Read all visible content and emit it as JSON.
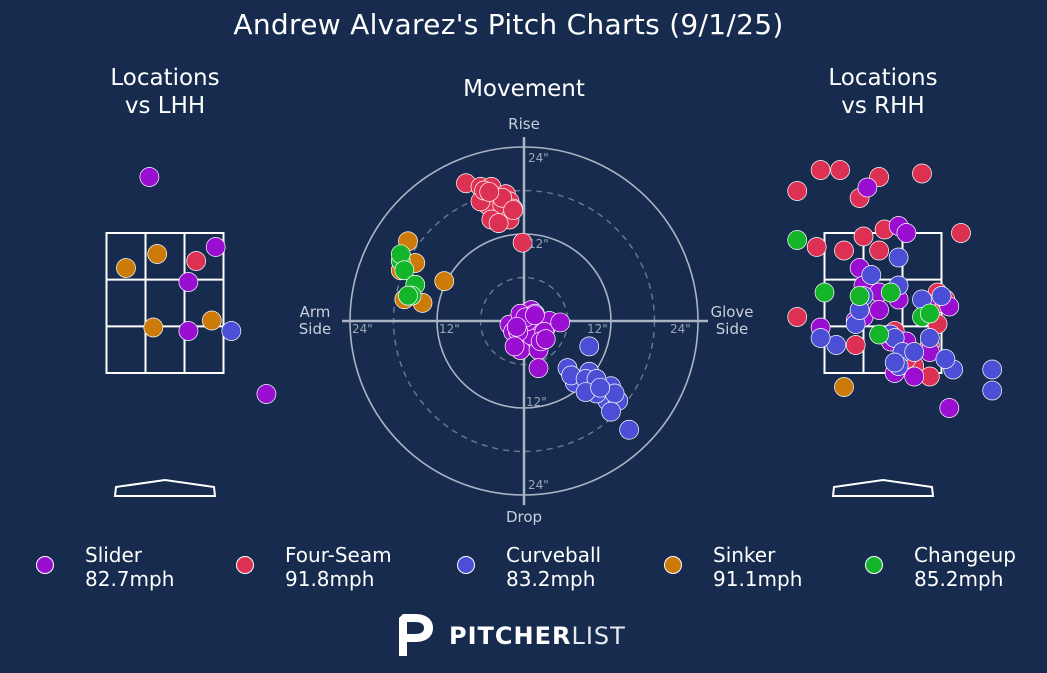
{
  "title": "Andrew Alvarez's Pitch Charts (9/1/25)",
  "panels": {
    "lhh_title_line1": "Locations",
    "lhh_title_line2": "vs LHH",
    "movement_title": "Movement",
    "rhh_title_line1": "Locations",
    "rhh_title_line2": "vs RHH"
  },
  "movement_labels": {
    "top": "Rise",
    "bottom": "Drop",
    "left_line1": "Arm",
    "left_line2": "Side",
    "right_line1": "Glove",
    "right_line2": "Side",
    "ring_labels": [
      "24\"",
      "12\"",
      "12\"",
      "24\"",
      "12\"",
      "12\"",
      "24\"",
      "24\""
    ]
  },
  "colors": {
    "background": "#162b4d",
    "Slider": "#9a0ed1",
    "Four-Seam": "#dc3152",
    "Curveball": "#4a4fd6",
    "Sinker": "#cc7a0a",
    "Changeup": "#14b52a"
  },
  "legend": [
    {
      "pitch": "Slider",
      "velo": "82.7mph",
      "color": "#9a0ed1"
    },
    {
      "pitch": "Four-Seam",
      "velo": "91.8mph",
      "color": "#dc3152"
    },
    {
      "pitch": "Curveball",
      "velo": "83.2mph",
      "color": "#4a4fd6"
    },
    {
      "pitch": "Sinker",
      "velo": "91.1mph",
      "color": "#cc7a0a"
    },
    {
      "pitch": "Changeup",
      "velo": "85.2mph",
      "color": "#14b52a"
    }
  ],
  "logo": {
    "bold": "PITCHER",
    "light": "LIST",
    "icon": "pitcherlist-p-icon"
  },
  "chart_data": [
    {
      "type": "scatter",
      "title": "Locations vs LHH",
      "xlim": [
        -1.5,
        1.5
      ],
      "ylim": [
        0.5,
        4.7
      ],
      "strike_zone": {
        "x": [
          -0.75,
          0.75
        ],
        "y": [
          1.5,
          3.5
        ]
      },
      "series": [
        {
          "name": "Slider",
          "x": [
            -0.2,
            0.65,
            0.3,
            0.3,
            1.3
          ],
          "y": [
            4.3,
            3.3,
            2.8,
            2.1,
            1.2
          ]
        },
        {
          "name": "Four-Seam",
          "x": [
            0.4
          ],
          "y": [
            3.1
          ]
        },
        {
          "name": "Curveball",
          "x": [
            0.85
          ],
          "y": [
            2.1
          ]
        },
        {
          "name": "Sinker",
          "x": [
            -0.5,
            -0.1,
            0.6,
            -0.15
          ],
          "y": [
            3.0,
            3.2,
            2.25,
            2.15
          ]
        }
      ]
    },
    {
      "type": "scatter",
      "title": "Movement",
      "xlim": [
        -24,
        24
      ],
      "ylim": [
        -24,
        24
      ],
      "series": [
        {
          "name": "Four-Seam",
          "x": [
            -8,
            -6,
            -4,
            -4.5,
            -2.5,
            -2,
            -1.5,
            -4,
            -5,
            -3,
            -2,
            -6,
            -4.5,
            -3.5,
            -5.5,
            -3,
            -1.5,
            -4.8,
            -0.2
          ],
          "y": [
            19,
            18.5,
            17.5,
            18.5,
            17.5,
            16.5,
            15.5,
            15.5,
            16,
            16,
            14,
            16.5,
            14,
            13.5,
            18,
            17,
            15.3,
            17.8,
            10.8
          ]
        },
        {
          "name": "Sinker",
          "x": [
            -16,
            -17,
            -15,
            -11,
            -14,
            -16.5
          ],
          "y": [
            11,
            7,
            8,
            5.5,
            2.5,
            3
          ]
        },
        {
          "name": "Changeup",
          "x": [
            -17,
            -17,
            -16.5,
            -15,
            -15.5,
            -16
          ],
          "y": [
            8.3,
            9.2,
            7,
            5,
            3.5,
            3.5
          ]
        },
        {
          "name": "Slider",
          "x": [
            1,
            -2,
            0,
            1.5,
            3,
            0,
            -0.5,
            2,
            1,
            -1.5,
            2,
            0.5,
            -0.5,
            3.5,
            1.5,
            0.2,
            -0.8,
            2.8,
            2.3,
            -1.3,
            5,
            -1,
            1.5,
            3,
            2
          ],
          "y": [
            1.5,
            -0.5,
            -2,
            -2,
            -1,
            -3.5,
            -4,
            -4,
            -2,
            -1.5,
            0,
            0,
            1,
            0,
            1,
            0.5,
            -1.5,
            -1.5,
            -2.8,
            -3.5,
            -0.2,
            -0.8,
            0.8,
            -2.5,
            -6.5
          ]
        },
        {
          "name": "Curveball",
          "x": [
            9,
            6,
            7,
            9,
            9.5,
            12,
            11.5,
            13,
            10,
            14.5,
            6.5,
            9,
            8.5,
            10,
            12.5,
            12,
            8.5,
            10.5
          ],
          "y": [
            -3.5,
            -6.5,
            -8.5,
            -7,
            -9.5,
            -9,
            -11,
            -11,
            -10,
            -15,
            -7.5,
            -9,
            -8,
            -8,
            -10,
            -12.5,
            -9.8,
            -9.2
          ]
        }
      ]
    },
    {
      "type": "scatter",
      "title": "Locations vs RHH",
      "xlim": [
        -1.5,
        1.5
      ],
      "ylim": [
        0.5,
        4.7
      ],
      "strike_zone": {
        "x": [
          -0.75,
          0.75
        ],
        "y": [
          1.5,
          3.5
        ]
      },
      "series": [
        {
          "name": "Four-Seam",
          "x": [
            -0.8,
            -0.55,
            -0.05,
            0.5,
            -1.1,
            -0.3,
            1.0,
            -0.85,
            -0.5,
            -0.25,
            0.02,
            -0.05,
            0.7,
            0.75,
            0.8,
            -1.1,
            0.7,
            0.6,
            0.4,
            -0.35,
            0.3,
            0.6,
            0.15
          ],
          "y": [
            4.4,
            4.4,
            4.3,
            4.35,
            4.1,
            4.0,
            3.5,
            3.3,
            3.25,
            3.45,
            3.55,
            3.25,
            2.65,
            2.5,
            2.55,
            2.3,
            2.2,
            1.9,
            1.6,
            1.9,
            1.7,
            1.45,
            2.1
          ]
        },
        {
          "name": "Slider",
          "x": [
            -0.2,
            0.2,
            0.3,
            -0.3,
            -0.25,
            -0.05,
            0.2,
            0.85,
            0.55,
            -0.8,
            -0.35,
            0.1,
            0.3,
            0.6,
            0.85,
            0.4,
            0.15,
            -0.25,
            -0.05
          ],
          "y": [
            4.15,
            3.6,
            3.5,
            3.0,
            2.75,
            2.65,
            2.55,
            2.45,
            2.5,
            2.15,
            2.25,
            1.95,
            1.95,
            1.8,
            1.0,
            1.45,
            1.5,
            2.3,
            2.4
          ]
        },
        {
          "name": "Curveball",
          "x": [
            0.2,
            -0.15,
            0.2,
            -0.25,
            0.5,
            0.75,
            -0.35,
            -0.6,
            -0.8,
            0.1,
            0.15,
            0.25,
            0.9,
            0.8,
            1.4,
            1.4,
            -0.3,
            0.2,
            0.4,
            0.15,
            0.6
          ],
          "y": [
            3.15,
            2.9,
            2.75,
            2.6,
            2.55,
            2.6,
            2.2,
            1.9,
            2.0,
            2.05,
            2.0,
            1.8,
            1.55,
            1.7,
            1.55,
            1.25,
            2.4,
            1.6,
            1.8,
            1.65,
            2.0
          ]
        },
        {
          "name": "Changeup",
          "x": [
            -1.1,
            -0.75,
            0.5,
            0.6,
            -0.05,
            -0.3,
            0.1
          ],
          "y": [
            3.4,
            2.65,
            2.3,
            2.35,
            2.05,
            2.6,
            2.65
          ]
        },
        {
          "name": "Sinker",
          "x": [
            -0.5
          ],
          "y": [
            1.3
          ]
        }
      ]
    }
  ]
}
